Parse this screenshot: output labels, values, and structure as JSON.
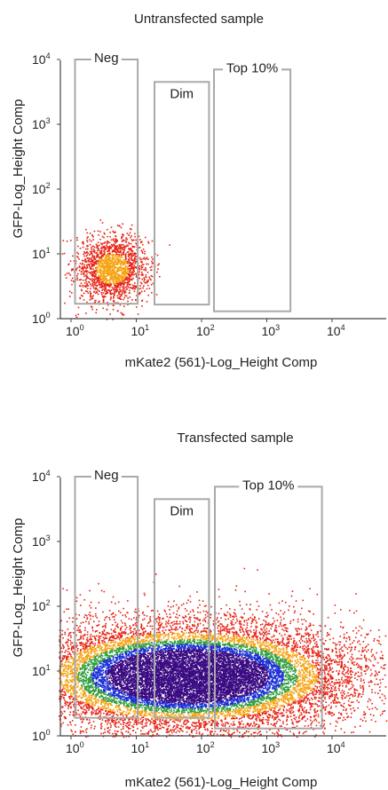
{
  "chart_data": [
    {
      "type": "scatter",
      "title": "Untransfected sample",
      "xlabel": "mKate2 (561)-Log_Height Comp",
      "ylabel": "GFP-Log_Height Comp",
      "xscale": "log",
      "yscale": "log",
      "xlim": [
        1,
        10000
      ],
      "ylim": [
        1,
        10000
      ],
      "x_ticks": [
        {
          "base": "10",
          "exp": "0",
          "value": 1
        },
        {
          "base": "10",
          "exp": "1",
          "value": 10
        },
        {
          "base": "10",
          "exp": "2",
          "value": 100
        },
        {
          "base": "10",
          "exp": "3",
          "value": 1000
        },
        {
          "base": "10",
          "exp": "4",
          "value": 10000
        }
      ],
      "y_ticks": [
        {
          "base": "10",
          "exp": "0",
          "value": 1
        },
        {
          "base": "10",
          "exp": "1",
          "value": 10
        },
        {
          "base": "10",
          "exp": "2",
          "value": 100
        },
        {
          "base": "10",
          "exp": "3",
          "value": 1000
        },
        {
          "base": "10",
          "exp": "4",
          "value": 10000
        }
      ],
      "gates": [
        {
          "label": "Neg",
          "x": [
            1.15,
            10.5
          ],
          "y": [
            1.7,
            10000
          ]
        },
        {
          "label": "Dim",
          "x": [
            19,
            130
          ],
          "y": [
            1.65,
            4500
          ]
        },
        {
          "label": "Top 10%",
          "x": [
            155,
            2300
          ],
          "y": [
            1.3,
            7000
          ]
        }
      ],
      "populations": [
        {
          "center": [
            4.2,
            6.0
          ],
          "spread": [
            0.28,
            0.26
          ],
          "n": 1800,
          "density_colors": [
            "#e62315",
            "#f5a20f"
          ]
        }
      ],
      "colors": {
        "axis": "#444444",
        "gate": "#a9a9a9",
        "sparse": "#e62315",
        "mid": "#f5a20f",
        "high": "#3a0a82"
      }
    },
    {
      "type": "scatter",
      "title": "Transfected sample",
      "xlabel": "mKate2 (561)-Log_Height Comp",
      "ylabel": "GFP-Log_Height Comp",
      "xscale": "log",
      "yscale": "log",
      "xlim": [
        1,
        10000
      ],
      "ylim": [
        1,
        10000
      ],
      "x_ticks": [
        {
          "base": "10",
          "exp": "0",
          "value": 1
        },
        {
          "base": "10",
          "exp": "1",
          "value": 10
        },
        {
          "base": "10",
          "exp": "2",
          "value": 100
        },
        {
          "base": "10",
          "exp": "3",
          "value": 1000
        },
        {
          "base": "10",
          "exp": "4",
          "value": 10000
        }
      ],
      "y_ticks": [
        {
          "base": "10",
          "exp": "0",
          "value": 1
        },
        {
          "base": "10",
          "exp": "1",
          "value": 10
        },
        {
          "base": "10",
          "exp": "2",
          "value": 100
        },
        {
          "base": "10",
          "exp": "3",
          "value": 1000
        },
        {
          "base": "10",
          "exp": "4",
          "value": 10000
        }
      ],
      "gates": [
        {
          "label": "Neg",
          "x": [
            1.15,
            10.5
          ],
          "y": [
            1.9,
            10000
          ]
        },
        {
          "label": "Dim",
          "x": [
            19,
            130
          ],
          "y": [
            1.9,
            4500
          ]
        },
        {
          "label": "Top 10%",
          "x": [
            160,
            7000
          ],
          "y": [
            1.3,
            7000
          ]
        }
      ],
      "populations": [
        {
          "center": [
            60,
            8.5
          ],
          "spread": [
            1.25,
            0.42
          ],
          "n": 16000,
          "density_colors": [
            "#e62315",
            "#f5a20f",
            "#2f9e3c",
            "#1a2fd8",
            "#3a0a82"
          ]
        }
      ],
      "colors": {
        "axis": "#444444",
        "gate": "#a9a9a9",
        "sparse": "#e62315",
        "mid": "#f5a20f",
        "high": "#3a0a82"
      }
    }
  ]
}
